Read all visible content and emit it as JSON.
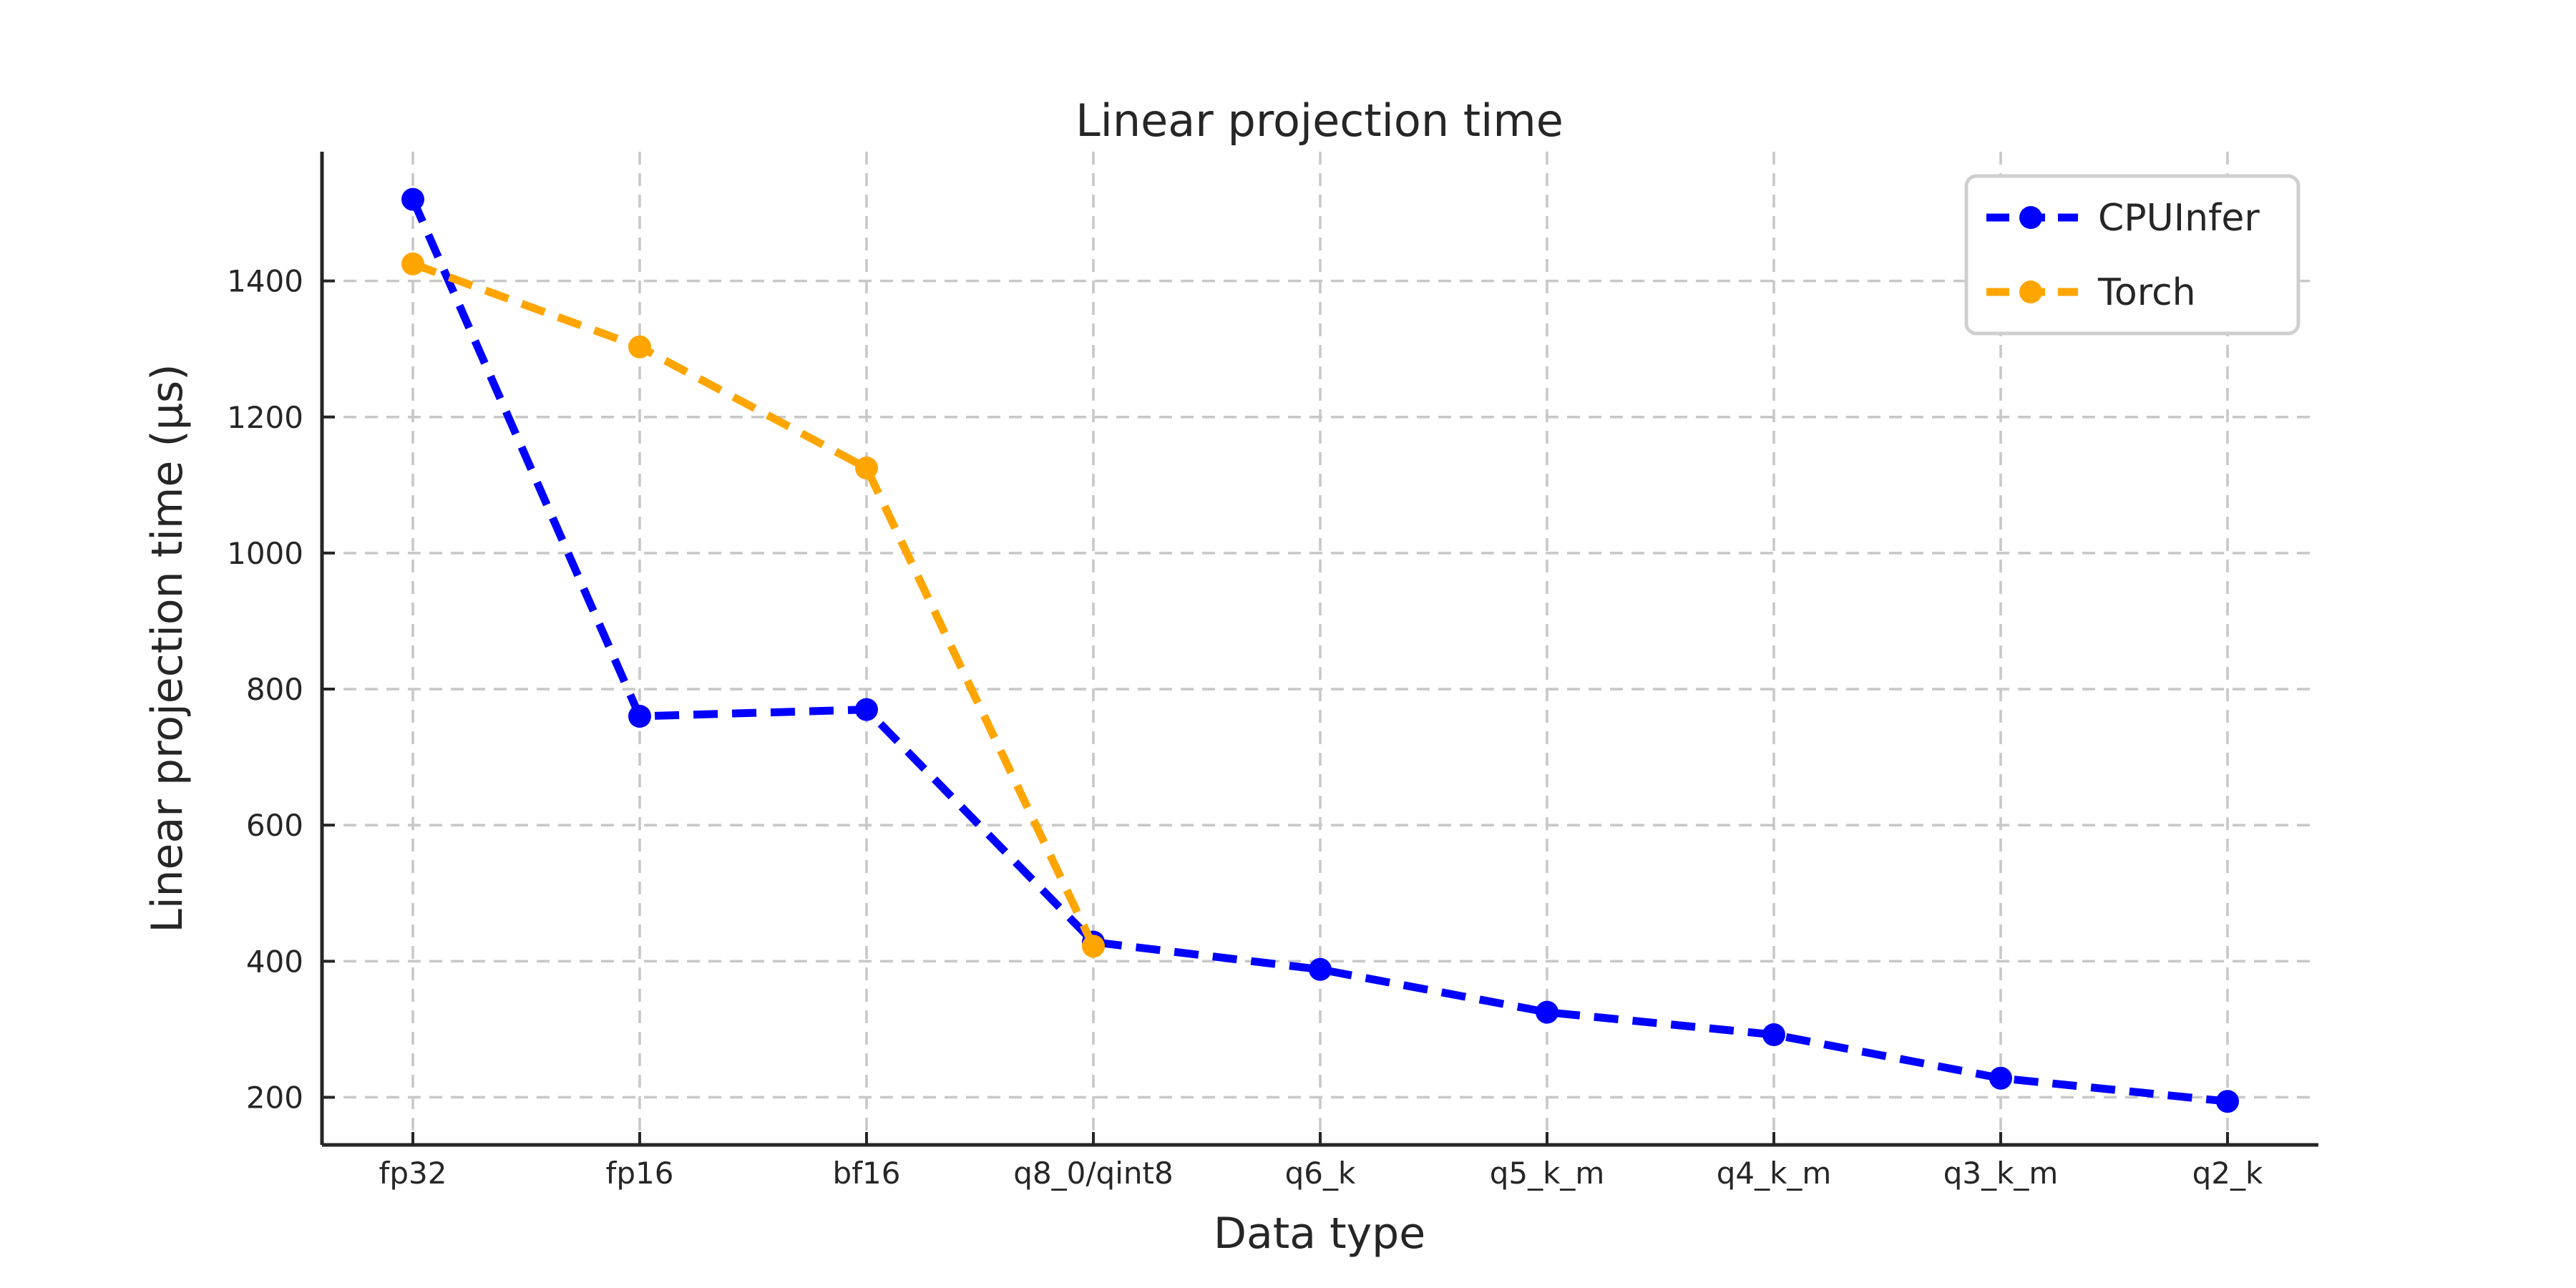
{
  "figure": {
    "background": "#ffffff"
  },
  "chart_data": {
    "type": "line",
    "title": "Linear projection time",
    "xlabel": "Data type",
    "ylabel": "Linear projection time (µs)",
    "categories": [
      "fp32",
      "fp16",
      "bf16",
      "q8_0/qint8",
      "q6_k",
      "q5_k_m",
      "q4_k_m",
      "q3_k_m",
      "q2_k"
    ],
    "series": [
      {
        "name": "CPUInfer",
        "color": "#0000ff",
        "linestyle": "dashed",
        "marker": "circle",
        "values": [
          1520,
          760,
          770,
          428,
          388,
          325,
          292,
          228,
          194
        ]
      },
      {
        "name": "Torch",
        "color": "#ffa500",
        "linestyle": "dashed",
        "marker": "circle",
        "values": [
          1425,
          1303,
          1125,
          422
        ]
      }
    ],
    "yticks": [
      200,
      400,
      600,
      800,
      1000,
      1200,
      1400
    ],
    "ylim": [
      130,
      1590
    ],
    "grid": true,
    "grid_color": "#c8c8c8",
    "axis_color": "#262626",
    "legend": {
      "position": "upper right",
      "entries": [
        "CPUInfer",
        "Torch"
      ]
    }
  }
}
